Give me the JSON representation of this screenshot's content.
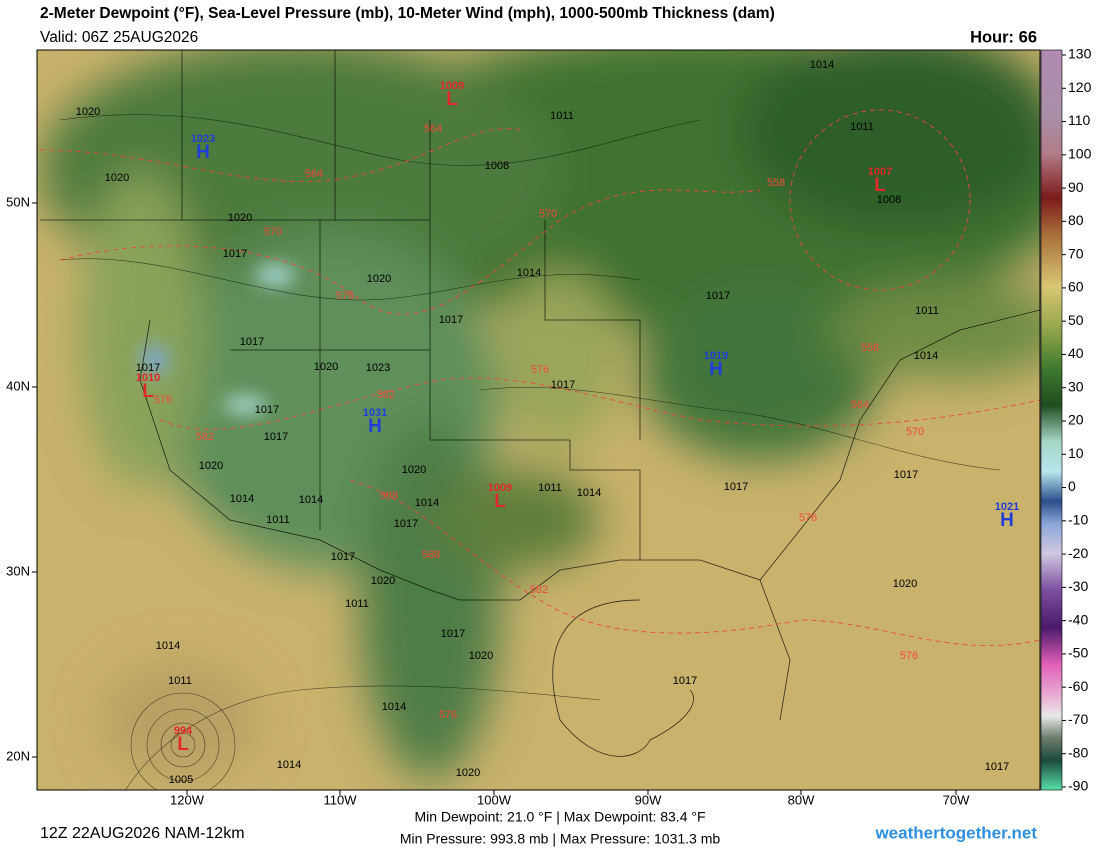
{
  "header": {
    "title": "2-Meter Dewpoint (°F), Sea-Level Pressure (mb), 10-Meter Wind (mph), 1000-500mb Thickness (dam)",
    "valid": "Valid: 06Z 25AUG2026",
    "hour": "Hour: 66"
  },
  "colorbar": {
    "ticks": [
      130,
      120,
      110,
      100,
      90,
      80,
      70,
      60,
      50,
      40,
      30,
      20,
      10,
      0,
      -10,
      -20,
      -30,
      -40,
      -50,
      -60,
      -70,
      -80,
      -90
    ]
  },
  "axes": {
    "lat": [
      "50N",
      "40N",
      "30N",
      "20N"
    ],
    "lon": [
      "120W",
      "110W",
      "100W",
      "90W",
      "80W",
      "70W"
    ]
  },
  "pressure_centers": [
    {
      "type": "L",
      "value": 1009
    },
    {
      "type": "H",
      "value": 1023
    },
    {
      "type": "L",
      "value": 1007
    },
    {
      "type": "H",
      "value": 1019
    },
    {
      "type": "H",
      "value": 1031
    },
    {
      "type": "L",
      "value": 1009
    },
    {
      "type": "H",
      "value": 1021
    },
    {
      "type": "L",
      "value": 1010
    },
    {
      "type": "L",
      "value": 994
    }
  ],
  "isobar_labels": [
    1014,
    1011,
    1020,
    1020,
    1008,
    1011,
    1008,
    1020,
    1017,
    1020,
    1014,
    1017,
    1011,
    1017,
    1017,
    1023,
    1020,
    1017,
    1014,
    1017,
    1017,
    1017,
    1020,
    1020,
    1014,
    1014,
    1014,
    1011,
    1014,
    1017,
    1017,
    1011,
    1017,
    1017,
    1020,
    1011,
    1017,
    1020,
    1014,
    1011,
    1020,
    1017,
    1014,
    1014,
    1005,
    1017,
    1020
  ],
  "thickness_labels": [
    564,
    564,
    570,
    570,
    576,
    576,
    558,
    558,
    564,
    570,
    576,
    576,
    582,
    582,
    582,
    588,
    588,
    576,
    576
  ],
  "footer": {
    "run": "12Z 22AUG2026 NAM-12km",
    "dewpoint": "Min Dewpoint:  21.0 °F | Max Dewpoint:  83.4 °F",
    "pressure": "Min Pressure: 993.8 mb | Max Pressure: 1031.3 mb",
    "site": "weathertogether.net"
  }
}
